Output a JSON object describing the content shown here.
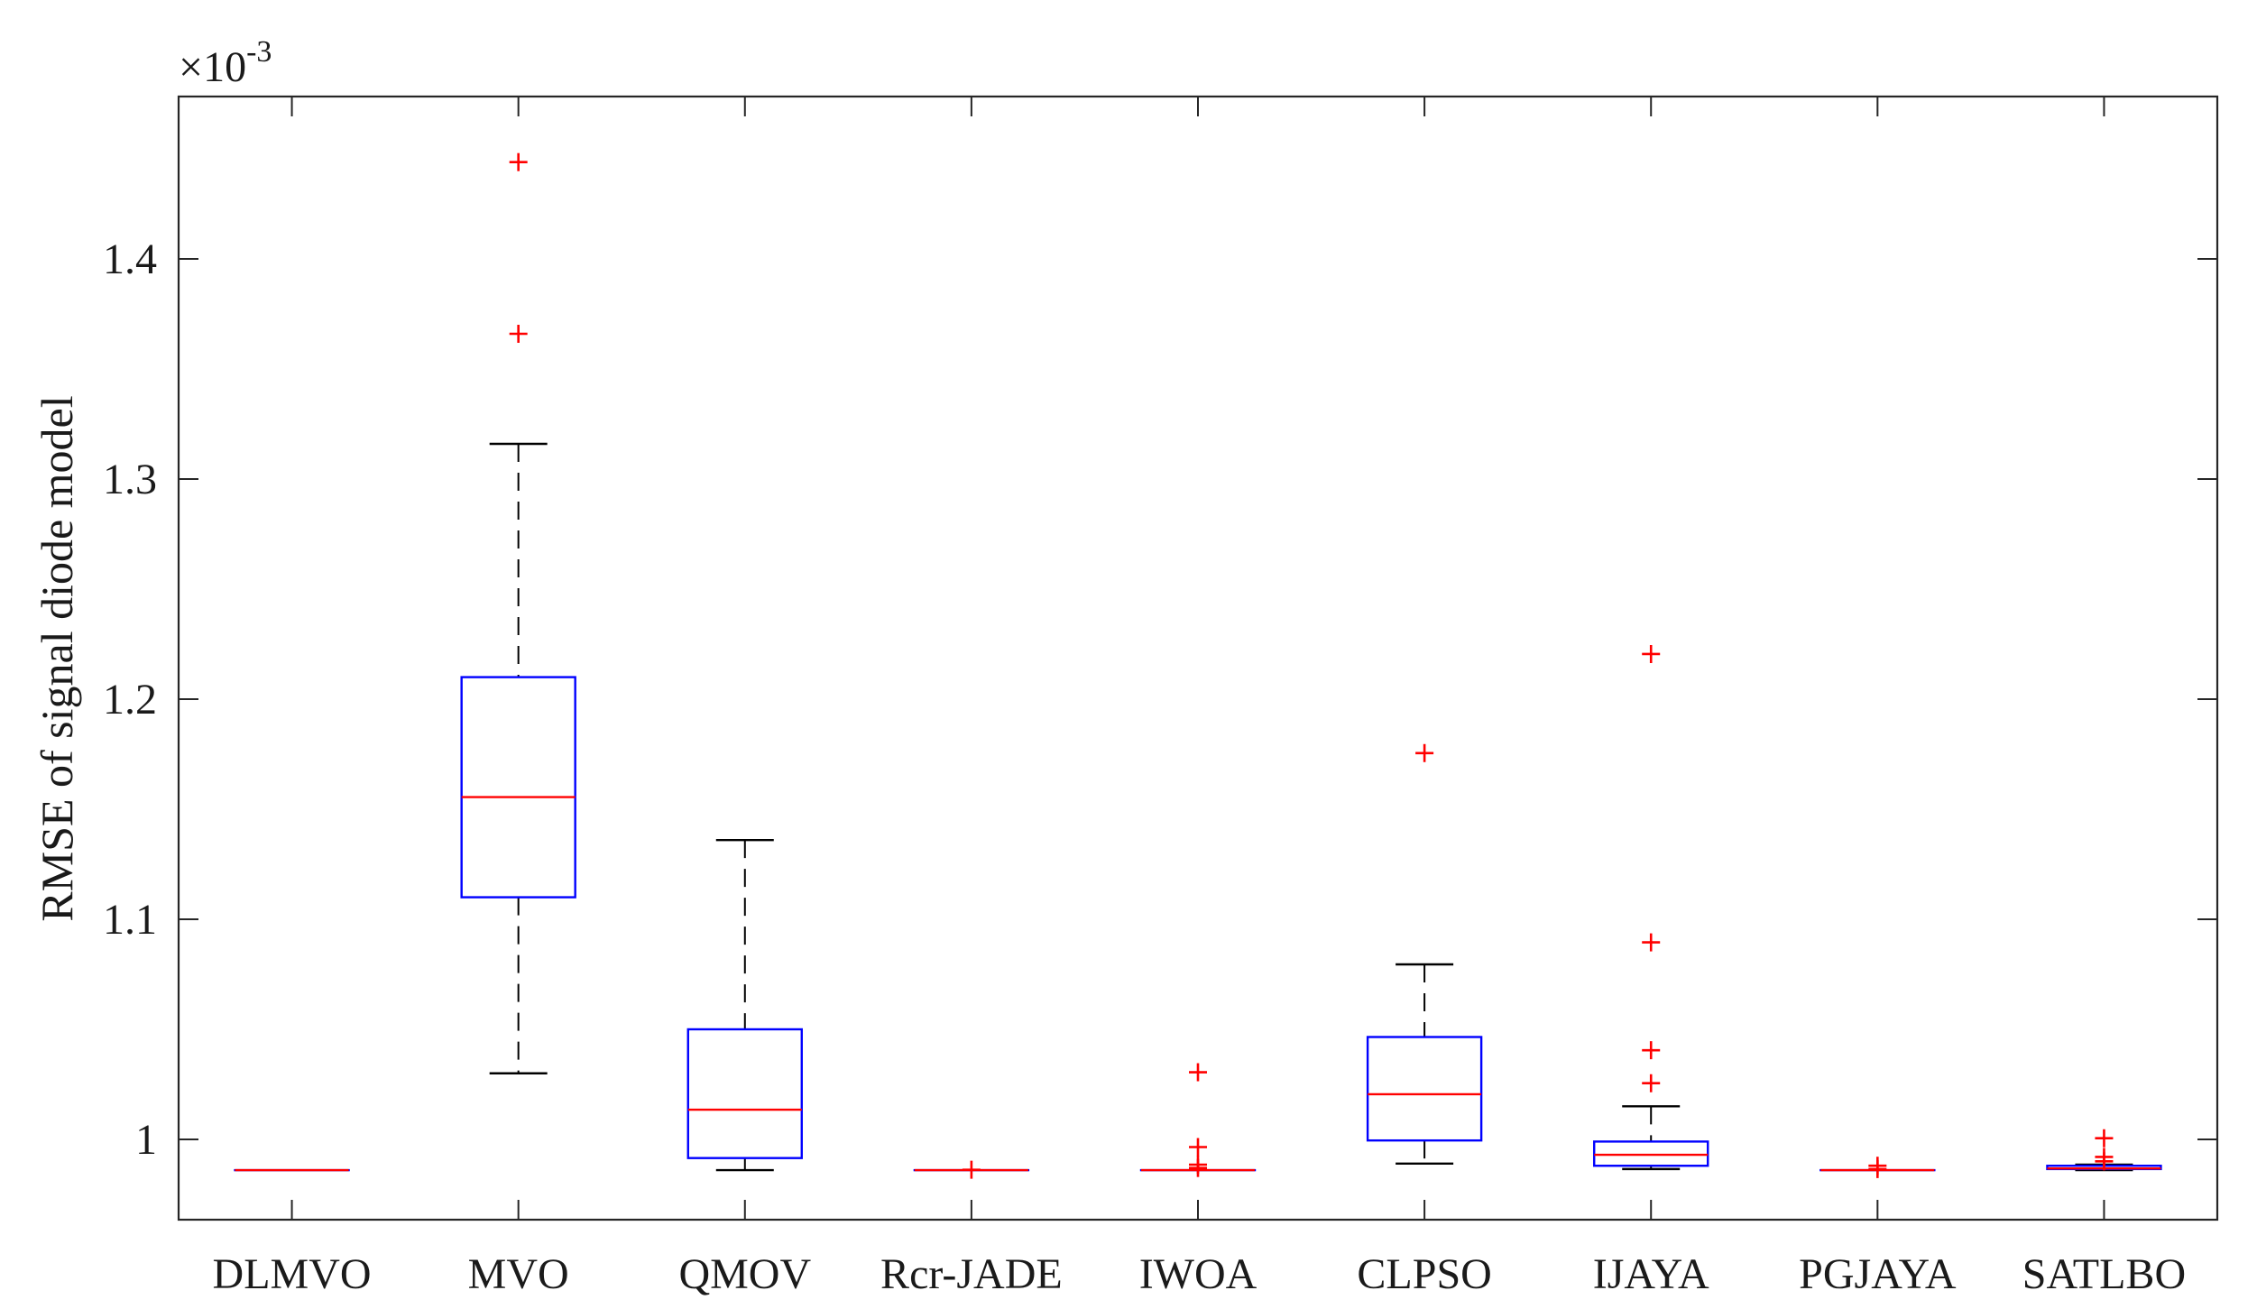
{
  "chart_data": {
    "type": "box",
    "title": "",
    "xlabel": "",
    "ylabel": "RMSE of signal diode model",
    "y_multiplier": {
      "times": "×",
      "base": "10",
      "exponent": "-3"
    },
    "ylim": [
      0.9635,
      1.4738
    ],
    "yticks": [
      1.0,
      1.1,
      1.2,
      1.3,
      1.4
    ],
    "ytick_labels": [
      "1",
      "1.1",
      "1.2",
      "1.3",
      "1.4"
    ],
    "categories": [
      "DLMVO",
      "MVO",
      "QMOV",
      "Rcr-JADE",
      "IWOA",
      "CLPSO",
      "IJAYA",
      "PGJAYA",
      "SATLBO"
    ],
    "boxes": [
      {
        "name": "DLMVO",
        "min": 0.986,
        "q1": 0.986,
        "median": 0.986,
        "q3": 0.986,
        "max": 0.986,
        "outliers": []
      },
      {
        "name": "MVO",
        "min": 1.03,
        "q1": 1.11,
        "median": 1.1555,
        "q3": 1.21,
        "max": 1.316,
        "outliers": [
          1.366,
          1.444
        ]
      },
      {
        "name": "QMOV",
        "min": 0.986,
        "q1": 0.9915,
        "median": 1.0135,
        "q3": 1.05,
        "max": 1.136,
        "outliers": []
      },
      {
        "name": "Rcr-JADE",
        "min": 0.986,
        "q1": 0.986,
        "median": 0.986,
        "q3": 0.986,
        "max": 0.986,
        "outliers": [
          0.9862
        ]
      },
      {
        "name": "IWOA",
        "min": 0.986,
        "q1": 0.986,
        "median": 0.986,
        "q3": 0.986,
        "max": 0.986,
        "outliers": [
          0.987,
          0.9885,
          0.9965,
          1.0305
        ]
      },
      {
        "name": "CLPSO",
        "min": 0.989,
        "q1": 0.9995,
        "median": 1.0205,
        "q3": 1.0465,
        "max": 1.0795,
        "outliers": [
          1.1755
        ]
      },
      {
        "name": "IJAYA",
        "min": 0.9865,
        "q1": 0.988,
        "median": 0.993,
        "q3": 0.999,
        "max": 1.015,
        "outliers": [
          1.0255,
          1.0405,
          1.0895,
          1.2205
        ]
      },
      {
        "name": "PGJAYA",
        "min": 0.986,
        "q1": 0.986,
        "median": 0.986,
        "q3": 0.986,
        "max": 0.986,
        "outliers": [
          0.9865,
          0.988
        ]
      },
      {
        "name": "SATLBO",
        "min": 0.986,
        "q1": 0.9865,
        "median": 0.9868,
        "q3": 0.988,
        "max": 0.9885,
        "outliers": [
          0.99,
          0.992,
          1.0005
        ]
      }
    ],
    "colors": {
      "box": "#0000ff",
      "median": "#ff0000",
      "whisker": "#000000",
      "outlier": "#ff0000",
      "axis": "#262626"
    }
  }
}
